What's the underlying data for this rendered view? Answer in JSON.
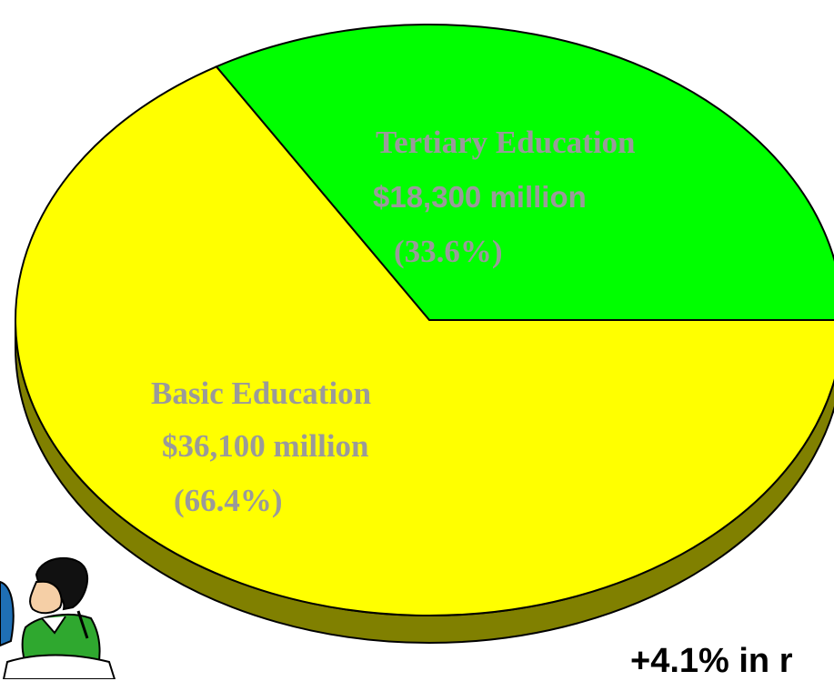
{
  "chart_data": {
    "type": "pie",
    "slices": [
      {
        "label": "Tertiary Education",
        "amount": "$18,300 million",
        "percent_label": "(33.6%)",
        "value": 33.6,
        "color": "#00ff00"
      },
      {
        "label": "Basic Education",
        "amount": "$36,100 million",
        "percent_label": "(66.4%)",
        "value": 66.4,
        "color": "#ffff00"
      }
    ],
    "shadow_color": "#808000",
    "label_color": "#9a9a9a"
  },
  "annotation": "+4.1% in r",
  "clipart_icon": "students-clipart-icon"
}
